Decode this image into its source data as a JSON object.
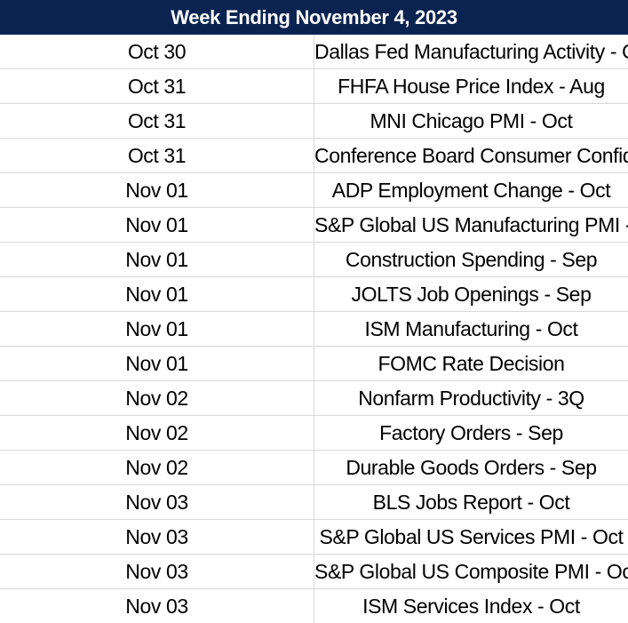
{
  "header": {
    "title": "Week Ending November 4, 2023"
  },
  "colors": {
    "header_background": "#0a2351",
    "header_text": "#ffffff",
    "grid_lines": "#d9d9d9"
  },
  "rows": [
    {
      "date": "Oct 30",
      "event": "Dallas Fed Manufacturing Activity - Oct"
    },
    {
      "date": "Oct 31",
      "event": "FHFA House Price Index - Aug"
    },
    {
      "date": "Oct 31",
      "event": "MNI Chicago PMI - Oct"
    },
    {
      "date": "Oct 31",
      "event": "Conference Board Consumer Confidence - Oct"
    },
    {
      "date": "Nov 01",
      "event": "ADP Employment Change - Oct"
    },
    {
      "date": "Nov 01",
      "event": "S&P Global US Manufacturing PMI - Oct"
    },
    {
      "date": "Nov 01",
      "event": "Construction Spending - Sep"
    },
    {
      "date": "Nov 01",
      "event": "JOLTS Job Openings - Sep"
    },
    {
      "date": "Nov 01",
      "event": "ISM Manufacturing - Oct"
    },
    {
      "date": "Nov 01",
      "event": "FOMC Rate Decision"
    },
    {
      "date": "Nov 02",
      "event": "Nonfarm Productivity - 3Q"
    },
    {
      "date": "Nov 02",
      "event": "Factory Orders - Sep"
    },
    {
      "date": "Nov 02",
      "event": "Durable Goods Orders - Sep"
    },
    {
      "date": "Nov 03",
      "event": "BLS Jobs Report - Oct"
    },
    {
      "date": "Nov 03",
      "event": "S&P Global US Services PMI - Oct"
    },
    {
      "date": "Nov 03",
      "event": "S&P Global US Composite PMI - Oct"
    },
    {
      "date": "Nov 03",
      "event": "ISM Services Index - Oct"
    }
  ]
}
